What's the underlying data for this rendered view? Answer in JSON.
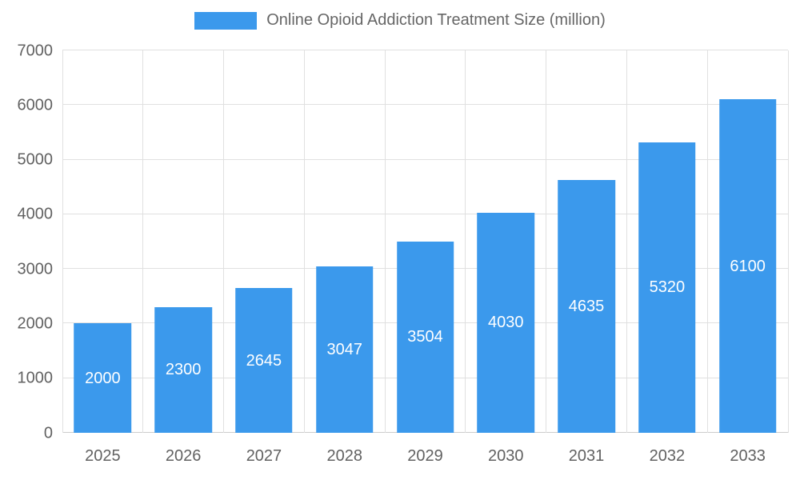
{
  "chart_data": {
    "type": "bar",
    "title": "Online Opioid Addiction Treatment Size (million)",
    "categories": [
      "2025",
      "2026",
      "2027",
      "2028",
      "2029",
      "2030",
      "2031",
      "2032",
      "2033"
    ],
    "values": [
      2000,
      2300,
      2645,
      3047,
      3504,
      4030,
      4635,
      5320,
      6100
    ],
    "xlabel": "",
    "ylabel": "",
    "ylim": [
      0,
      7000
    ],
    "y_ticks": [
      0,
      1000,
      2000,
      3000,
      4000,
      5000,
      6000,
      7000
    ],
    "grid": true,
    "legend_position": "top",
    "bar_color": "#3b99ec",
    "value_label_color": "#ffffff",
    "axis_text_color": "#616161",
    "grid_color": "#e0e0e0",
    "axis_line_color": "#cccccc"
  }
}
